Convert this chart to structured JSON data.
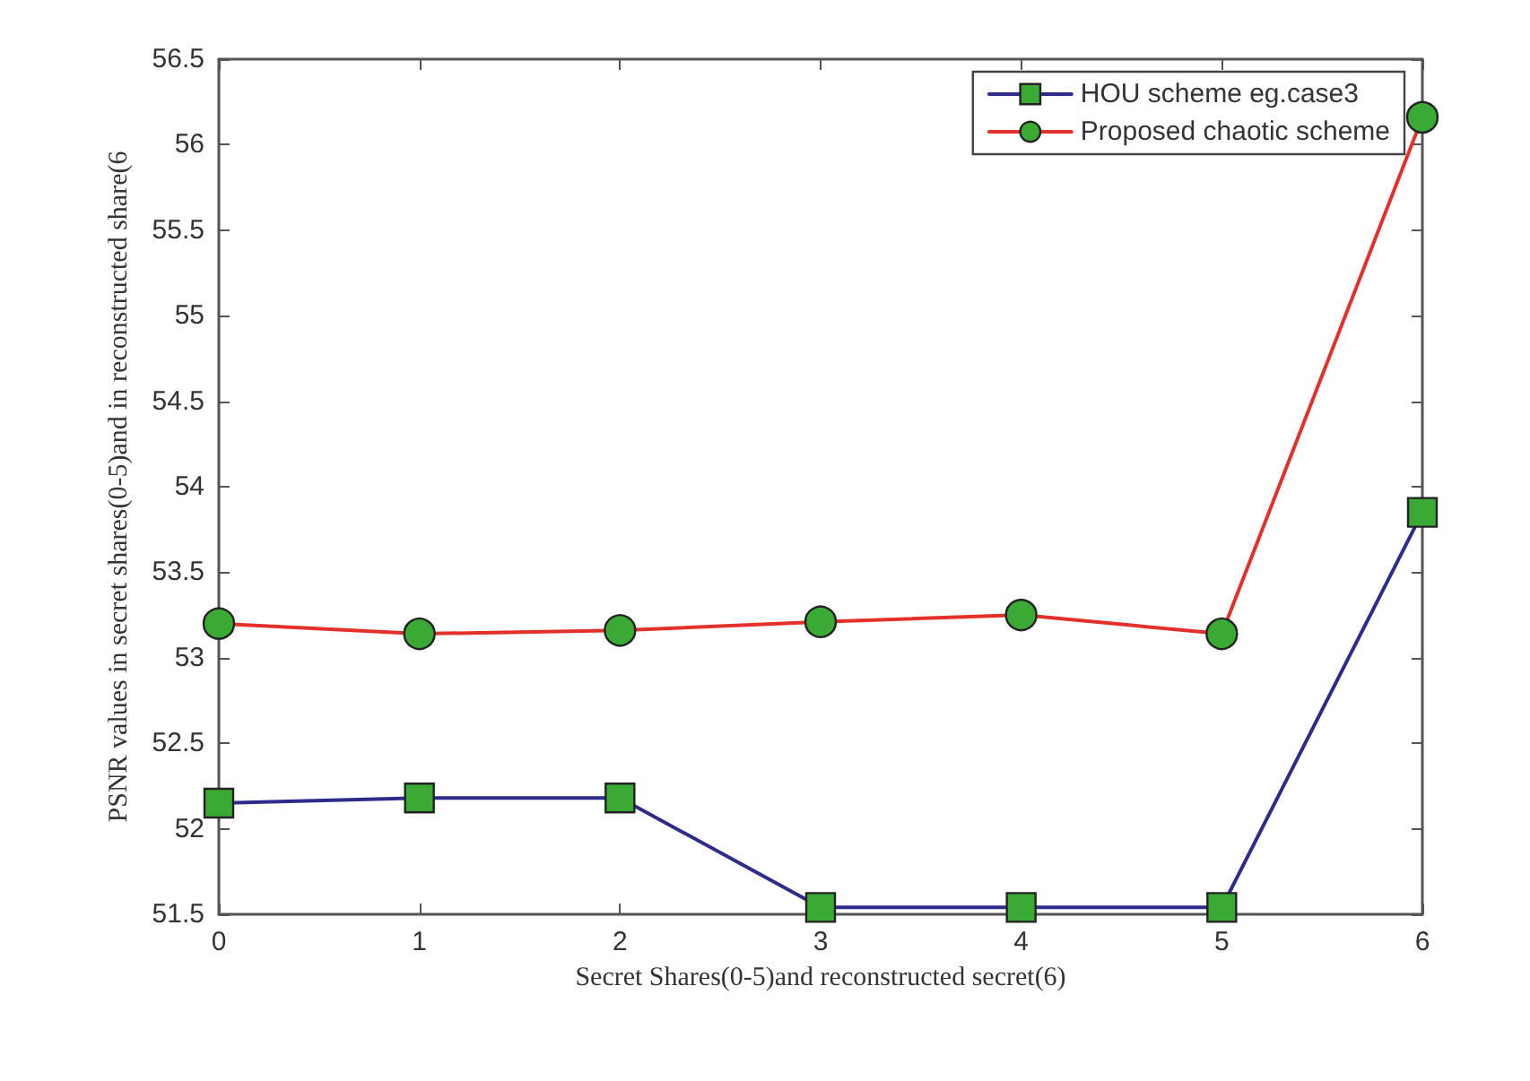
{
  "chart_data": {
    "type": "line",
    "xlabel": "Secret Shares(0-5)and reconstructed secret(6)",
    "ylabel": "PSNR values in secret shares(0-5)and in reconstructed share(6",
    "x": [
      0,
      1,
      2,
      3,
      4,
      5,
      6
    ],
    "xlim": [
      0,
      6
    ],
    "xticks": [
      0,
      1,
      2,
      3,
      4,
      5,
      6
    ],
    "ylim": [
      51.5,
      56.5
    ],
    "yticks": [
      51.5,
      52,
      52.5,
      53,
      53.5,
      54,
      54.5,
      55,
      55.5,
      56,
      56.5
    ],
    "grid": false,
    "legend": "top right",
    "line_style": "solid",
    "series": [
      {
        "name": "HOU scheme eg.case3",
        "color": "#2e2b8c",
        "marker": "square",
        "values": [
          52.15,
          52.18,
          52.18,
          51.54,
          51.54,
          51.54,
          53.85
        ]
      },
      {
        "name": "Proposed chaotic scheme",
        "color": "#e3302a",
        "marker": "circle",
        "values": [
          53.2,
          53.14,
          53.16,
          53.21,
          53.25,
          53.14,
          56.16
        ]
      }
    ]
  }
}
